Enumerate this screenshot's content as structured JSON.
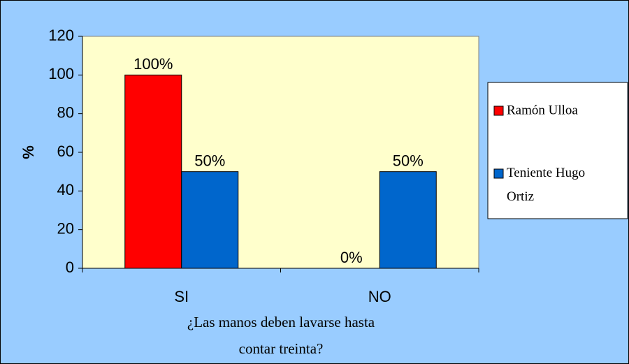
{
  "chart_data": {
    "type": "bar",
    "categories": [
      "SI",
      "NO"
    ],
    "series": [
      {
        "name": "Ramón Ulloa",
        "color": "#ff0000",
        "values": [
          100,
          0
        ],
        "value_labels": [
          "100%",
          "0%"
        ]
      },
      {
        "name": "Teniente Hugo Ortiz",
        "color": "#0066cc",
        "values": [
          50,
          50
        ],
        "value_labels": [
          "50%",
          "50%"
        ]
      }
    ],
    "y_label": "%",
    "x_label": "¿Las manos deben lavarse hasta contar treinta?",
    "ylim": [
      0,
      120
    ],
    "yticks": [
      0,
      20,
      40,
      60,
      80,
      100,
      120
    ],
    "legend": "right"
  }
}
